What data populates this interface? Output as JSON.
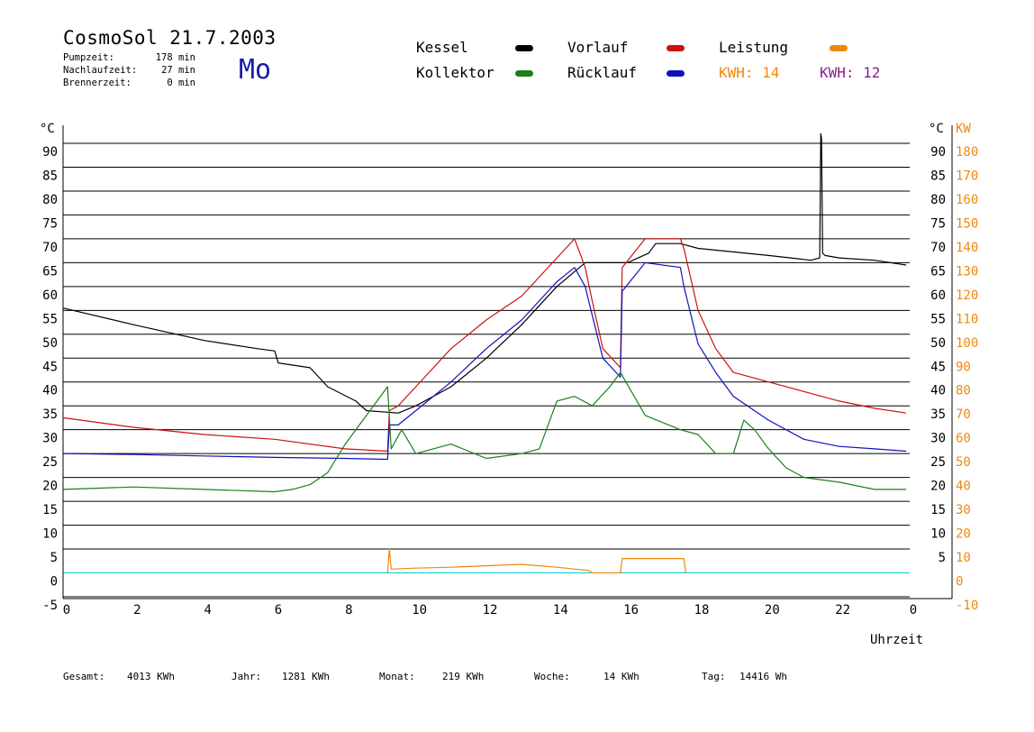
{
  "header": {
    "title": "CosmoSol 21.7.2003",
    "day": "Mo",
    "pumpzeit_label": "Pumpzeit:",
    "pumpzeit_value": "178 min",
    "nachlaufzeit_label": "Nachlaufzeit:",
    "nachlaufzeit_value": "27 min",
    "brennerzeit_label": "Brennerzeit:",
    "brennerzeit_value": "0 min"
  },
  "legend": {
    "kessel": "Kessel",
    "kollektor": "Kollektor",
    "vorlauf": "Vorlauf",
    "ruecklauf": "Rücklauf",
    "leistung": "Leistung",
    "kwh1": "KWH: 14",
    "kwh2": "KWH: 12"
  },
  "footer": {
    "gesamt_label": "Gesamt:",
    "gesamt_value": "4013 KWh",
    "jahr_label": "Jahr:",
    "jahr_value": "1281 KWh",
    "monat_label": "Monat:",
    "monat_value": "219 KWh",
    "woche_label": "Woche:",
    "woche_value": "14 KWh",
    "tag_label": "Tag:",
    "tag_value": "14416 Wh"
  },
  "colors": {
    "kessel": "#000000",
    "kollektor": "#1a801a",
    "vorlauf": "#cc1111",
    "ruecklauf": "#1111bb",
    "leistung": "#ee8811",
    "kwh2": "#882288",
    "zero_line": "#00cccc"
  },
  "chart_data": {
    "type": "line",
    "xlabel": "Uhrzeit",
    "ylabel_left": "°C",
    "ylabel_right": "°C",
    "ylabel_right2": "KW",
    "xlim": [
      0,
      24
    ],
    "ylim": [
      -5,
      90
    ],
    "y2lim": [
      -10,
      180
    ],
    "grid": true,
    "x_ticks": [
      "0",
      "2",
      "4",
      "6",
      "8",
      "10",
      "12",
      "14",
      "16",
      "18",
      "20",
      "22",
      "0"
    ],
    "y_ticks_left": [
      "-5",
      "0",
      "5",
      "10",
      "15",
      "20",
      "25",
      "30",
      "35",
      "40",
      "45",
      "50",
      "55",
      "60",
      "65",
      "70",
      "75",
      "80",
      "85",
      "90"
    ],
    "y_ticks_right": [
      "5",
      "10",
      "15",
      "20",
      "25",
      "30",
      "35",
      "40",
      "45",
      "50",
      "55",
      "60",
      "65",
      "70",
      "75",
      "80",
      "85",
      "90"
    ],
    "y_ticks_right2": [
      "-10",
      "0",
      "10",
      "20",
      "30",
      "40",
      "50",
      "60",
      "70",
      "80",
      "90",
      "100",
      "110",
      "120",
      "130",
      "140",
      "150",
      "160",
      "170",
      "180"
    ],
    "series": [
      {
        "name": "Kessel",
        "color": "#000000",
        "x": [
          0,
          2,
          4,
          5.5,
          6,
          6.1,
          7,
          7.5,
          8.3,
          8.6,
          9.5,
          10,
          11,
          12,
          13,
          14,
          14.8,
          15.5,
          16,
          16.6,
          16.8,
          17.5,
          18,
          20,
          21.2,
          21.45,
          21.48,
          21.5,
          21.53,
          21.6,
          22,
          23,
          23.9
        ],
        "y": [
          55.5,
          52,
          48.7,
          47,
          46.5,
          44,
          43,
          39,
          36,
          34,
          33.5,
          35,
          39,
          45,
          52,
          60,
          65,
          65,
          65,
          67,
          69,
          69,
          68,
          66.5,
          65.5,
          66,
          92,
          91,
          67,
          66.5,
          66,
          65.5,
          64.5
        ]
      },
      {
        "name": "Vorlauf",
        "color": "#cc1111",
        "x": [
          0,
          2,
          4,
          6,
          8,
          9.2,
          9.25,
          9.5,
          10,
          11,
          12,
          13,
          14,
          14.5,
          14.8,
          15,
          15.3,
          15.8,
          15.85,
          16.5,
          17.5,
          17.6,
          18,
          18.5,
          19,
          20,
          21,
          22,
          23,
          23.9
        ],
        "y": [
          32.5,
          30.5,
          29,
          28,
          26,
          25.5,
          34,
          35,
          39,
          47,
          53,
          58,
          66,
          70,
          64,
          57,
          47,
          43,
          64,
          70,
          70,
          68,
          55,
          47,
          42,
          40,
          38,
          36,
          34.5,
          33.5
        ]
      },
      {
        "name": "Rücklauf",
        "color": "#1111bb",
        "x": [
          0,
          2,
          4,
          6,
          8,
          9.2,
          9.25,
          9.5,
          10,
          11,
          12,
          13,
          14,
          14.5,
          14.8,
          15,
          15.3,
          15.8,
          15.85,
          16.5,
          17.5,
          17.6,
          18,
          18.5,
          19,
          20,
          21,
          22,
          23,
          23.9
        ],
        "y": [
          25,
          24.8,
          24.5,
          24.2,
          24,
          23.8,
          31,
          31,
          34,
          40,
          47,
          53,
          61,
          64,
          60,
          54,
          45,
          41,
          59,
          65,
          64,
          60,
          48,
          42,
          37,
          32,
          28,
          26.5,
          26,
          25.5
        ]
      },
      {
        "name": "Kollektor",
        "color": "#1a801a",
        "x": [
          0,
          2,
          4,
          6,
          6.5,
          7,
          7.5,
          8,
          8.5,
          9,
          9.2,
          9.3,
          9.6,
          10,
          11,
          12,
          13,
          13.5,
          14,
          14.5,
          15,
          15.5,
          15.8,
          16.5,
          17.5,
          18,
          18.5,
          19,
          19.3,
          19.6,
          20,
          20.5,
          21,
          22,
          23,
          23.9
        ],
        "y": [
          17.5,
          18,
          17.5,
          17,
          17.5,
          18.5,
          21,
          27,
          32,
          37,
          39,
          26,
          30,
          25,
          27,
          24,
          25,
          26,
          36,
          37,
          35,
          39,
          42,
          33,
          30,
          29,
          25,
          25,
          32,
          30,
          26,
          22,
          20,
          19,
          17.5,
          17.5
        ]
      },
      {
        "name": "Leistung",
        "color": "#ee8811",
        "x": [
          9.2,
          9.25,
          9.3,
          10,
          11,
          12,
          13,
          13.5,
          14,
          14.9,
          15,
          15.8,
          15.85,
          16.5,
          17.6,
          17.65
        ],
        "y": [
          0,
          5,
          0.8,
          1.0,
          1.2,
          1.5,
          1.8,
          1.5,
          1.2,
          0.5,
          0,
          0,
          3,
          3,
          3,
          0
        ]
      }
    ]
  }
}
